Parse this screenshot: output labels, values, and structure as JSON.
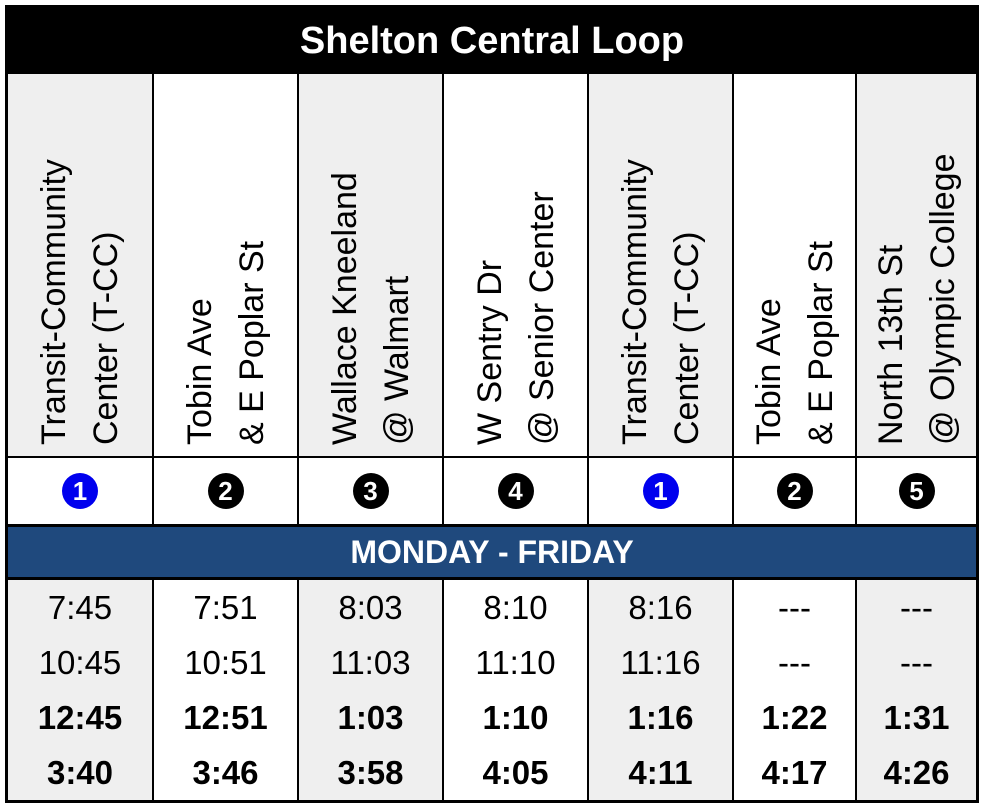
{
  "title": "Shelton Central Loop",
  "days_label": "MONDAY - FRIDAY",
  "stops": [
    {
      "line1": "Transit-Community",
      "line2": "Center (T-CC)",
      "number": "1",
      "highlight": true
    },
    {
      "line1": "Tobin Ave",
      "line2": "& E Poplar St",
      "number": "2",
      "highlight": false
    },
    {
      "line1": "Wallace Kneeland",
      "line2": "@ Walmart",
      "number": "3",
      "highlight": false
    },
    {
      "line1": "W Sentry Dr",
      "line2": "@ Senior Center",
      "number": "4",
      "highlight": false
    },
    {
      "line1": "Transit-Community",
      "line2": "Center (T-CC)",
      "number": "1",
      "highlight": true
    },
    {
      "line1": "Tobin Ave",
      "line2": "& E Poplar St",
      "number": "2",
      "highlight": false
    },
    {
      "line1": "North 13th St",
      "line2": "@ Olympic College",
      "number": "5",
      "highlight": false
    }
  ],
  "times": [
    [
      "7:45",
      "10:45",
      "12:45",
      "3:40"
    ],
    [
      "7:51",
      "10:51",
      "12:51",
      "3:46"
    ],
    [
      "8:03",
      "11:03",
      "1:03",
      "3:58"
    ],
    [
      "8:10",
      "11:10",
      "1:10",
      "4:05"
    ],
    [
      "8:16",
      "11:16",
      "1:16",
      "4:11"
    ],
    [
      "---",
      "---",
      "1:22",
      "4:17"
    ],
    [
      "---",
      "---",
      "1:31",
      "4:26"
    ]
  ],
  "pm_rows": [
    2,
    3
  ]
}
